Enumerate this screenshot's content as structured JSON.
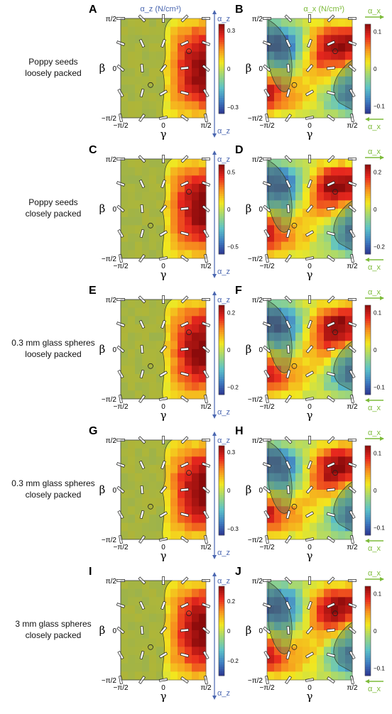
{
  "figure": {
    "column_titles": {
      "z": "α_z (N/cm³)",
      "x": "α_x (N/cm³)"
    },
    "force_labels": {
      "z": "α_z",
      "x": "α_x"
    },
    "x_axis_label": "γ",
    "y_axis_label": "β",
    "x_ticks": [
      "−π/2",
      "0",
      "π/2"
    ],
    "y_ticks": [
      "π/2",
      "0",
      "−π/2"
    ],
    "colorscale": [
      "#2b3590",
      "#3f7fc2",
      "#5cc2c8",
      "#9ed67a",
      "#f2e81e",
      "#f7931e",
      "#e8281e",
      "#8b0b0b"
    ]
  },
  "rows": [
    {
      "label_lines": [
        "Poppy seeds",
        "loosely packed"
      ]
    },
    {
      "label_lines": [
        "Poppy seeds",
        "closely packed"
      ]
    },
    {
      "label_lines": [
        "0.3 mm glass spheres",
        "loosely packed"
      ]
    },
    {
      "label_lines": [
        "0.3 mm glass spheres",
        "closely packed"
      ]
    },
    {
      "label_lines": [
        "3 mm glass spheres",
        "closely packed"
      ]
    }
  ],
  "chart_data": [
    {
      "type": "heatmap",
      "panel": "A",
      "quantity": "α_z",
      "x": "γ",
      "y": "β",
      "xlim": [
        "-π/2",
        "π/2"
      ],
      "ylim": [
        "-π/2",
        "π/2"
      ],
      "colorbar": {
        "range": [
          -0.35,
          0.35
        ],
        "tick_labels": [
          "0.3",
          "0",
          "−0.3"
        ],
        "tick_values": [
          0.3,
          0,
          -0.3
        ]
      },
      "approx_max": 0.28,
      "approx_min": 0.0
    },
    {
      "type": "heatmap",
      "panel": "B",
      "quantity": "α_x",
      "x": "γ",
      "y": "β",
      "xlim": [
        "-π/2",
        "π/2"
      ],
      "ylim": [
        "-π/2",
        "π/2"
      ],
      "colorbar": {
        "range": [
          -0.12,
          0.12
        ],
        "tick_labels": [
          "0.1",
          "0",
          "−0.1"
        ],
        "tick_values": [
          0.1,
          0,
          -0.1
        ]
      },
      "approx_max": 0.11,
      "approx_min": -0.11
    },
    {
      "type": "heatmap",
      "panel": "C",
      "quantity": "α_z",
      "x": "γ",
      "y": "β",
      "xlim": [
        "-π/2",
        "π/2"
      ],
      "ylim": [
        "-π/2",
        "π/2"
      ],
      "colorbar": {
        "range": [
          -0.6,
          0.6
        ],
        "tick_labels": [
          "0.5",
          "0",
          "−0.5"
        ],
        "tick_values": [
          0.5,
          0,
          -0.5
        ]
      },
      "approx_max": 0.5,
      "approx_min": 0.0
    },
    {
      "type": "heatmap",
      "panel": "D",
      "quantity": "α_x",
      "x": "γ",
      "y": "β",
      "xlim": [
        "-π/2",
        "π/2"
      ],
      "ylim": [
        "-π/2",
        "π/2"
      ],
      "colorbar": {
        "range": [
          -0.24,
          0.24
        ],
        "tick_labels": [
          "0.2",
          "0",
          "−0.2"
        ],
        "tick_values": [
          0.2,
          0,
          -0.2
        ]
      },
      "approx_max": 0.22,
      "approx_min": -0.2
    },
    {
      "type": "heatmap",
      "panel": "E",
      "quantity": "α_z",
      "x": "γ",
      "y": "β",
      "xlim": [
        "-π/2",
        "π/2"
      ],
      "ylim": [
        "-π/2",
        "π/2"
      ],
      "colorbar": {
        "range": [
          -0.24,
          0.24
        ],
        "tick_labels": [
          "0.2",
          "0",
          "−0.2"
        ],
        "tick_values": [
          0.2,
          0,
          -0.2
        ]
      },
      "approx_max": 0.22,
      "approx_min": 0.0
    },
    {
      "type": "heatmap",
      "panel": "F",
      "quantity": "α_x",
      "x": "γ",
      "y": "β",
      "xlim": [
        "-π/2",
        "π/2"
      ],
      "ylim": [
        "-π/2",
        "π/2"
      ],
      "colorbar": {
        "range": [
          -0.12,
          0.12
        ],
        "tick_labels": [
          "0.1",
          "0",
          "−0.1"
        ],
        "tick_values": [
          0.1,
          0,
          -0.1
        ]
      },
      "approx_max": 0.1,
      "approx_min": -0.1
    },
    {
      "type": "heatmap",
      "panel": "G",
      "quantity": "α_z",
      "x": "γ",
      "y": "β",
      "xlim": [
        "-π/2",
        "π/2"
      ],
      "ylim": [
        "-π/2",
        "π/2"
      ],
      "colorbar": {
        "range": [
          -0.35,
          0.35
        ],
        "tick_labels": [
          "0.3",
          "0",
          "−0.3"
        ],
        "tick_values": [
          0.3,
          0,
          -0.3
        ]
      },
      "approx_max": 0.33,
      "approx_min": 0.0
    },
    {
      "type": "heatmap",
      "panel": "H",
      "quantity": "α_x",
      "x": "γ",
      "y": "β",
      "xlim": [
        "-π/2",
        "π/2"
      ],
      "ylim": [
        "-π/2",
        "π/2"
      ],
      "colorbar": {
        "range": [
          -0.12,
          0.12
        ],
        "tick_labels": [
          "0.1",
          "0",
          "−0.1"
        ],
        "tick_values": [
          0.1,
          0,
          -0.1
        ]
      },
      "approx_max": 0.11,
      "approx_min": -0.11
    },
    {
      "type": "heatmap",
      "panel": "I",
      "quantity": "α_z",
      "x": "γ",
      "y": "β",
      "xlim": [
        "-π/2",
        "π/2"
      ],
      "ylim": [
        "-π/2",
        "π/2"
      ],
      "colorbar": {
        "range": [
          -0.3,
          0.3
        ],
        "tick_labels": [
          "0.2",
          "0",
          "−0.2"
        ],
        "tick_values": [
          0.2,
          0,
          -0.2
        ]
      },
      "approx_max": 0.25,
      "approx_min": 0.0
    },
    {
      "type": "heatmap",
      "panel": "J",
      "quantity": "α_x",
      "x": "γ",
      "y": "β",
      "xlim": [
        "-π/2",
        "π/2"
      ],
      "ylim": [
        "-π/2",
        "π/2"
      ],
      "colorbar": {
        "range": [
          -0.12,
          0.12
        ],
        "tick_labels": [
          "0.1",
          "0",
          "−0.1"
        ],
        "tick_values": [
          0.1,
          0,
          -0.1
        ]
      },
      "approx_max": 0.11,
      "approx_min": -0.11
    }
  ]
}
